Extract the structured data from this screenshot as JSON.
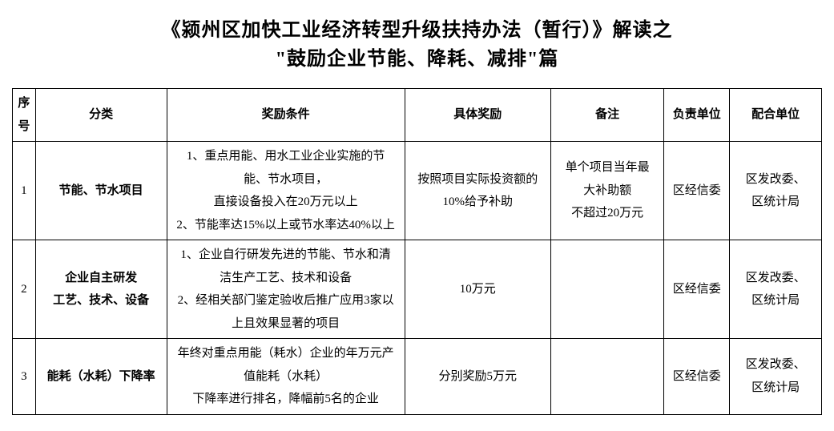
{
  "title": {
    "line1": "《颍州区加快工业经济转型升级扶持办法（暂行）》解读之",
    "line2": "\"鼓励企业节能、降耗、减排\"篇"
  },
  "columns": {
    "seq": "序号",
    "category": "分类",
    "condition": "奖励条件",
    "reward": "具体奖励",
    "remark": "备注",
    "dept": "负责单位",
    "coop": "配合单位"
  },
  "rows": [
    {
      "seq": "1",
      "category": "节能、节水项目",
      "condition": "1、重点用能、用水工业企业实施的节\n能、节水项目，\n直接设备投入在20万元以上\n2、节能率达15%以上或节水率达40%以上",
      "reward": "按照项目实际投资额的\n10%给予补助",
      "remark": "单个项目当年最\n大补助额\n不超过20万元",
      "dept": "区经信委",
      "coop": "区发改委、\n区统计局"
    },
    {
      "seq": "2",
      "category": "企业自主研发\n工艺、技术、设备",
      "condition": "1、企业自行研发先进的节能、节水和清\n洁生产工艺、技术和设备\n2、经相关部门鉴定验收后推广应用3家以\n上且效果显著的项目",
      "reward": "10万元",
      "remark": "",
      "dept": "区经信委",
      "coop": "区发改委、\n区统计局"
    },
    {
      "seq": "3",
      "category": "能耗（水耗）下降率",
      "condition": "年终对重点用能（耗水）企业的年万元产\n值能耗（水耗）\n下降率进行排名，降幅前5名的企业",
      "reward": "分别奖励5万元",
      "remark": "",
      "dept": "区经信委",
      "coop": "区发改委、\n区统计局"
    }
  ],
  "style": {
    "background_color": "#ffffff",
    "border_color": "#000000",
    "text_color": "#000000",
    "title_fontsize": 24,
    "cell_fontsize": 15
  }
}
